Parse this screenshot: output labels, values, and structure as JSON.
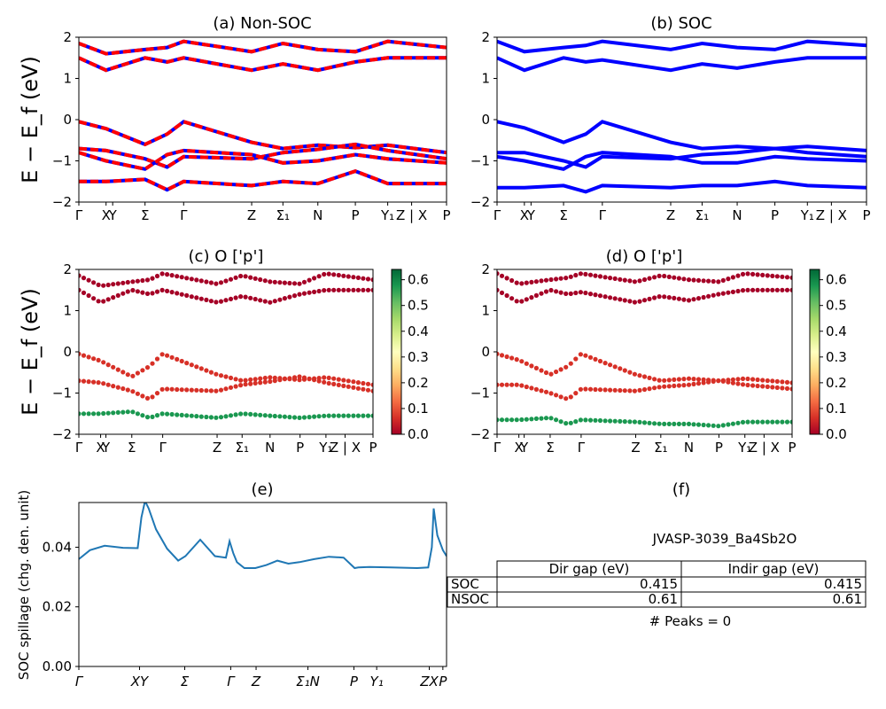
{
  "chart_data": [
    {
      "type": "line",
      "panel": "a",
      "title": "(a) Non-SOC",
      "ylabel": "E − E_f (eV)",
      "ylim": [
        -2,
        2
      ],
      "yticks": [
        "−2",
        "−1",
        "0",
        "1",
        "2"
      ],
      "kpath": [
        "Γ",
        "X",
        "Y",
        "Σ",
        "Γ",
        "Z",
        "Σ₁",
        "N",
        "P",
        "Y₁",
        "Z | X",
        "P"
      ],
      "series": [
        {
          "values": [
            -0.05,
            -0.22,
            -0.6,
            -0.35,
            -0.05,
            -0.55,
            -0.7,
            -0.62,
            -0.68,
            -0.62,
            -0.8
          ]
        },
        {
          "values": [
            -0.7,
            -0.75,
            -0.95,
            -1.15,
            -0.9,
            -0.95,
            -0.8,
            -0.72,
            -0.6,
            -0.75,
            -0.95
          ]
        },
        {
          "values": [
            -0.8,
            -1.0,
            -1.2,
            -0.85,
            -0.75,
            -0.85,
            -1.05,
            -1.0,
            -0.85,
            -0.95,
            -1.05
          ]
        },
        {
          "values": [
            -1.5,
            -1.5,
            -1.45,
            -1.7,
            -1.5,
            -1.6,
            -1.5,
            -1.55,
            -1.25,
            -1.55,
            -1.55
          ]
        },
        {
          "values": [
            1.5,
            1.2,
            1.5,
            1.4,
            1.5,
            1.2,
            1.35,
            1.2,
            1.4,
            1.5,
            1.5
          ]
        },
        {
          "values": [
            1.85,
            1.6,
            1.7,
            1.75,
            1.9,
            1.65,
            1.85,
            1.7,
            1.65,
            1.9,
            1.75
          ]
        }
      ],
      "colors": [
        "#0000ff",
        "#ff0000"
      ]
    },
    {
      "type": "line",
      "panel": "b",
      "title": "(b) SOC",
      "ylim": [
        -2,
        2
      ],
      "yticks": [
        "−2",
        "−1",
        "0",
        "1",
        "2"
      ],
      "kpath": [
        "Γ",
        "X",
        "Y",
        "Σ",
        "Γ",
        "Z",
        "Σ₁",
        "N",
        "P",
        "Y₁",
        "Z | X",
        "P"
      ],
      "series": [
        {
          "values": [
            -0.05,
            -0.2,
            -0.55,
            -0.35,
            -0.05,
            -0.55,
            -0.7,
            -0.65,
            -0.7,
            -0.65,
            -0.75
          ]
        },
        {
          "values": [
            -0.8,
            -0.8,
            -1.0,
            -1.15,
            -0.9,
            -0.95,
            -0.85,
            -0.8,
            -0.7,
            -0.8,
            -0.9
          ]
        },
        {
          "values": [
            -0.9,
            -1.0,
            -1.2,
            -0.9,
            -0.8,
            -0.9,
            -1.05,
            -1.05,
            -0.9,
            -0.95,
            -1.0
          ]
        },
        {
          "values": [
            -1.65,
            -1.65,
            -1.6,
            -1.75,
            -1.6,
            -1.65,
            -1.6,
            -1.6,
            -1.5,
            -1.6,
            -1.65
          ]
        },
        {
          "values": [
            1.5,
            1.2,
            1.5,
            1.4,
            1.45,
            1.2,
            1.35,
            1.25,
            1.4,
            1.5,
            1.5
          ]
        },
        {
          "values": [
            1.9,
            1.65,
            1.75,
            1.8,
            1.9,
            1.7,
            1.85,
            1.75,
            1.7,
            1.9,
            1.8
          ]
        }
      ],
      "colors": [
        "#0000ff"
      ]
    },
    {
      "type": "scatter",
      "panel": "c",
      "title": "(c)  O ['p']",
      "ylabel": "E − E_f (eV)",
      "ylim": [
        -2,
        2
      ],
      "yticks": [
        "−2",
        "−1",
        "0",
        "1",
        "2"
      ],
      "kpath": [
        "Γ",
        "X",
        "Y",
        "Σ",
        "Γ",
        "Z",
        "Σ₁",
        "N",
        "P",
        "Y₁",
        "Z | X",
        "P"
      ],
      "colorbar": {
        "min": 0.0,
        "max": 0.64,
        "ticks": [
          "0.0",
          "0.1",
          "0.2",
          "0.3",
          "0.4",
          "0.5",
          "0.6"
        ]
      },
      "bands": [
        {
          "values": [
            -0.05,
            -0.22,
            -0.6,
            -0.35,
            -0.05,
            -0.55,
            -0.7,
            -0.62,
            -0.68,
            -0.62,
            -0.8
          ],
          "weight": 0.05
        },
        {
          "values": [
            -0.7,
            -0.75,
            -0.95,
            -1.15,
            -0.9,
            -0.95,
            -0.8,
            -0.72,
            -0.6,
            -0.75,
            -0.95
          ],
          "weight": 0.04
        },
        {
          "values": [
            -1.5,
            -1.5,
            -1.45,
            -1.6,
            -1.5,
            -1.6,
            -1.5,
            -1.55,
            -1.6,
            -1.55,
            -1.55
          ],
          "weight": 0.6
        },
        {
          "values": [
            1.5,
            1.2,
            1.5,
            1.4,
            1.5,
            1.2,
            1.35,
            1.2,
            1.4,
            1.5,
            1.5
          ],
          "weight": 0.02
        },
        {
          "values": [
            1.85,
            1.6,
            1.7,
            1.75,
            1.9,
            1.65,
            1.85,
            1.7,
            1.65,
            1.9,
            1.75
          ],
          "weight": 0.02
        }
      ]
    },
    {
      "type": "scatter",
      "panel": "d",
      "title": "(d) O ['p']",
      "ylim": [
        -2,
        2
      ],
      "yticks": [
        "−2",
        "−1",
        "0",
        "1",
        "2"
      ],
      "kpath": [
        "Γ",
        "X",
        "Y",
        "Σ",
        "Γ",
        "Z",
        "Σ₁",
        "N",
        "P",
        "Y₁",
        "Z | X",
        "P"
      ],
      "colorbar": {
        "min": 0.0,
        "max": 0.64,
        "ticks": [
          "0.0",
          "0.1",
          "0.2",
          "0.3",
          "0.4",
          "0.5",
          "0.6"
        ]
      },
      "bands": [
        {
          "values": [
            -0.05,
            -0.2,
            -0.55,
            -0.35,
            -0.05,
            -0.55,
            -0.7,
            -0.65,
            -0.7,
            -0.65,
            -0.75
          ],
          "weight": 0.05
        },
        {
          "values": [
            -0.8,
            -0.8,
            -1.0,
            -1.15,
            -0.9,
            -0.95,
            -0.85,
            -0.8,
            -0.7,
            -0.8,
            -0.9
          ],
          "weight": 0.04
        },
        {
          "values": [
            -1.65,
            -1.65,
            -1.6,
            -1.75,
            -1.65,
            -1.7,
            -1.75,
            -1.75,
            -1.8,
            -1.7,
            -1.7
          ],
          "weight": 0.6
        },
        {
          "values": [
            1.5,
            1.2,
            1.5,
            1.4,
            1.45,
            1.2,
            1.35,
            1.25,
            1.4,
            1.5,
            1.5
          ],
          "weight": 0.02
        },
        {
          "values": [
            1.9,
            1.65,
            1.75,
            1.8,
            1.9,
            1.7,
            1.85,
            1.75,
            1.7,
            1.9,
            1.8
          ],
          "weight": 0.02
        }
      ]
    },
    {
      "type": "line",
      "panel": "e",
      "title": "(e)",
      "ylabel": "SOC spillage (chg. den. unit)",
      "ylim": [
        0,
        0.055
      ],
      "yticks": [
        "0.00",
        "0.02",
        "0.04"
      ],
      "kpath": [
        "Γ",
        "XY",
        "Σ",
        "Γ",
        "Z",
        "Σ₁N",
        "P",
        "Y₁",
        "ZX",
        "P"
      ],
      "series": [
        {
          "color": "#1f77b4",
          "x": [
            0,
            0.03,
            0.07,
            0.12,
            0.16,
            0.17,
            0.18,
            0.19,
            0.21,
            0.24,
            0.27,
            0.29,
            0.33,
            0.37,
            0.4,
            0.41,
            0.42,
            0.43,
            0.45,
            0.48,
            0.51,
            0.54,
            0.57,
            0.6,
            0.64,
            0.68,
            0.72,
            0.75,
            0.76,
            0.79,
            0.85,
            0.92,
            0.95,
            0.96,
            0.965,
            0.975,
            0.99,
            1.0
          ],
          "y": [
            0.036,
            0.039,
            0.0405,
            0.0398,
            0.0397,
            0.05,
            0.0555,
            0.053,
            0.046,
            0.0395,
            0.0355,
            0.037,
            0.0425,
            0.037,
            0.0365,
            0.042,
            0.038,
            0.035,
            0.033,
            0.033,
            0.034,
            0.0355,
            0.0345,
            0.035,
            0.036,
            0.0368,
            0.0365,
            0.033,
            0.0332,
            0.0334,
            0.0332,
            0.033,
            0.0332,
            0.04,
            0.053,
            0.044,
            0.039,
            0.037
          ]
        }
      ]
    },
    {
      "type": "table",
      "panel": "f",
      "title": "(f)",
      "subtitle": "JVASP-3039_Ba4Sb2O",
      "columns": [
        "Dir gap (eV)",
        "Indir gap (eV)"
      ],
      "rows": [
        {
          "label": "SOC",
          "dir": "0.415",
          "indir": "0.415"
        },
        {
          "label": "NSOC",
          "dir": "0.61",
          "indir": "0.61"
        }
      ],
      "footer": "# Peaks = 0"
    }
  ]
}
